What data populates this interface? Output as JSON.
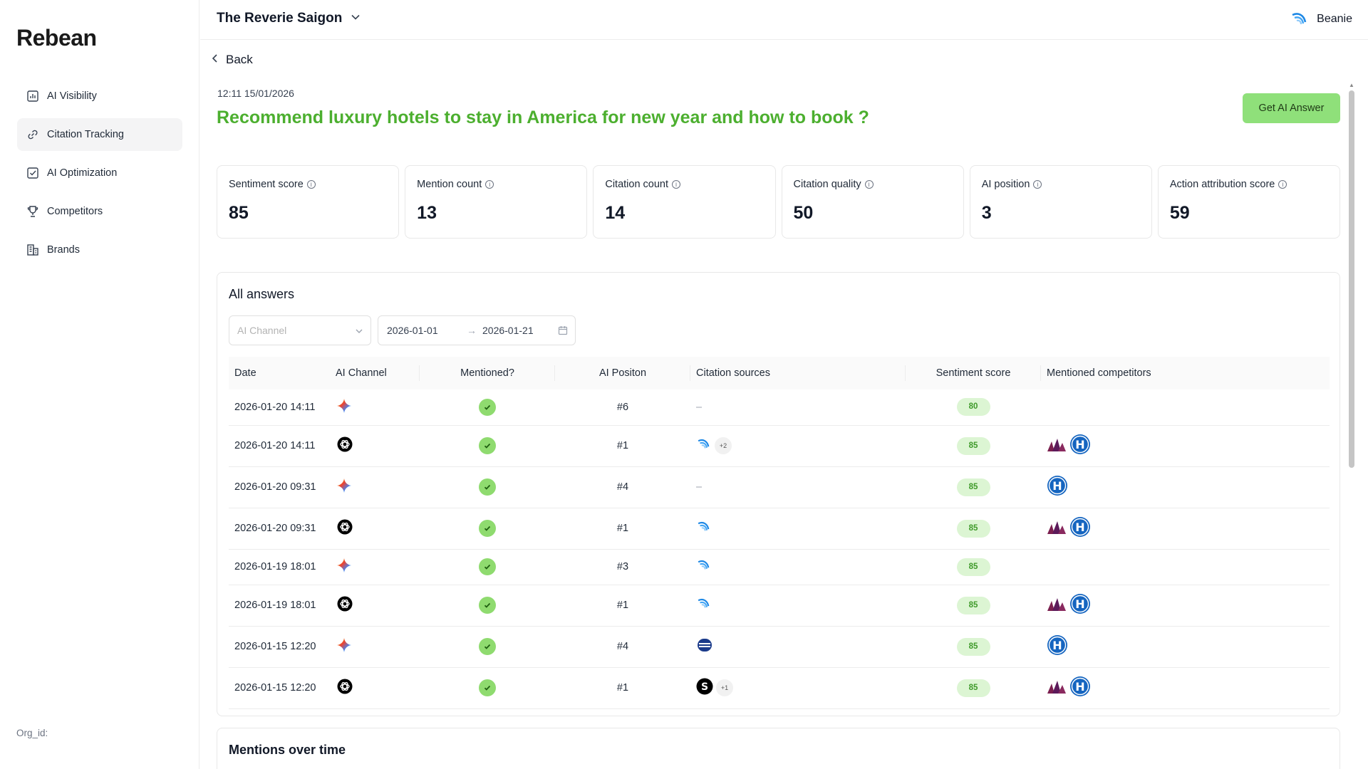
{
  "sidebar": {
    "logo": "Rebean",
    "items": [
      {
        "label": "AI Visibility",
        "icon": "bar-chart-icon"
      },
      {
        "label": "Citation Tracking",
        "icon": "link-icon"
      },
      {
        "label": "AI Optimization",
        "icon": "checkbox-icon"
      },
      {
        "label": "Competitors",
        "icon": "trophy-icon"
      },
      {
        "label": "Brands",
        "icon": "building-icon"
      }
    ],
    "org_label": "Org_id:"
  },
  "topbar": {
    "brand": "The Reverie Saigon",
    "user": "Beanie"
  },
  "page": {
    "back": "Back",
    "timestamp": "12:11 15/01/2026",
    "question": "Recommend luxury hotels to stay in America for new year and how to book ?",
    "get_answer": "Get AI Answer"
  },
  "metrics": [
    {
      "label": "Sentiment score",
      "value": "85"
    },
    {
      "label": "Mention count",
      "value": "13"
    },
    {
      "label": "Citation count",
      "value": "14"
    },
    {
      "label": "Citation quality",
      "value": "50"
    },
    {
      "label": "AI position",
      "value": "3"
    },
    {
      "label": "Action attribution score",
      "value": "59"
    }
  ],
  "answers": {
    "title": "All answers",
    "channel_placeholder": "AI Channel",
    "date_from": "2026-01-01",
    "date_to": "2026-01-21",
    "arrow": "→",
    "columns": [
      "Date",
      "AI Channel",
      "Mentioned?",
      "AI Positon",
      "Citation sources",
      "Sentiment score",
      "Mentioned competitors"
    ],
    "rows": [
      {
        "date": "2026-01-20 14:11",
        "channel": "gemini",
        "position": "#6",
        "sources": "none",
        "score": "80",
        "competitors": []
      },
      {
        "date": "2026-01-20 14:11",
        "channel": "chatgpt",
        "position": "#1",
        "sources": "reverie",
        "more": "+2",
        "score": "85",
        "competitors": [
          "marriott",
          "hilton"
        ]
      },
      {
        "date": "2026-01-20 09:31",
        "channel": "gemini",
        "position": "#4",
        "sources": "none",
        "score": "85",
        "competitors": [
          "hilton"
        ]
      },
      {
        "date": "2026-01-20 09:31",
        "channel": "chatgpt",
        "position": "#1",
        "sources": "reverie",
        "score": "85",
        "competitors": [
          "marriott",
          "hilton"
        ]
      },
      {
        "date": "2026-01-19 18:01",
        "channel": "gemini",
        "position": "#3",
        "sources": "reverie",
        "score": "85",
        "competitors": []
      },
      {
        "date": "2026-01-19 18:01",
        "channel": "chatgpt",
        "position": "#1",
        "sources": "reverie",
        "score": "85",
        "competitors": [
          "marriott",
          "hilton"
        ]
      },
      {
        "date": "2026-01-15 12:20",
        "channel": "gemini",
        "position": "#4",
        "sources": "booking",
        "score": "85",
        "competitors": [
          "hilton"
        ]
      },
      {
        "date": "2026-01-15 12:20",
        "channel": "chatgpt",
        "position": "#1",
        "sources": "s-logo",
        "more": "+1",
        "score": "85",
        "competitors": [
          "marriott",
          "hilton"
        ]
      }
    ],
    "none_text": "–"
  },
  "mentions": {
    "title": "Mentions over time"
  },
  "colors": {
    "accent": "#4caf2f",
    "button": "#8fe07a",
    "check": "#8fdb6f",
    "score_bg": "#dcf5d3"
  }
}
